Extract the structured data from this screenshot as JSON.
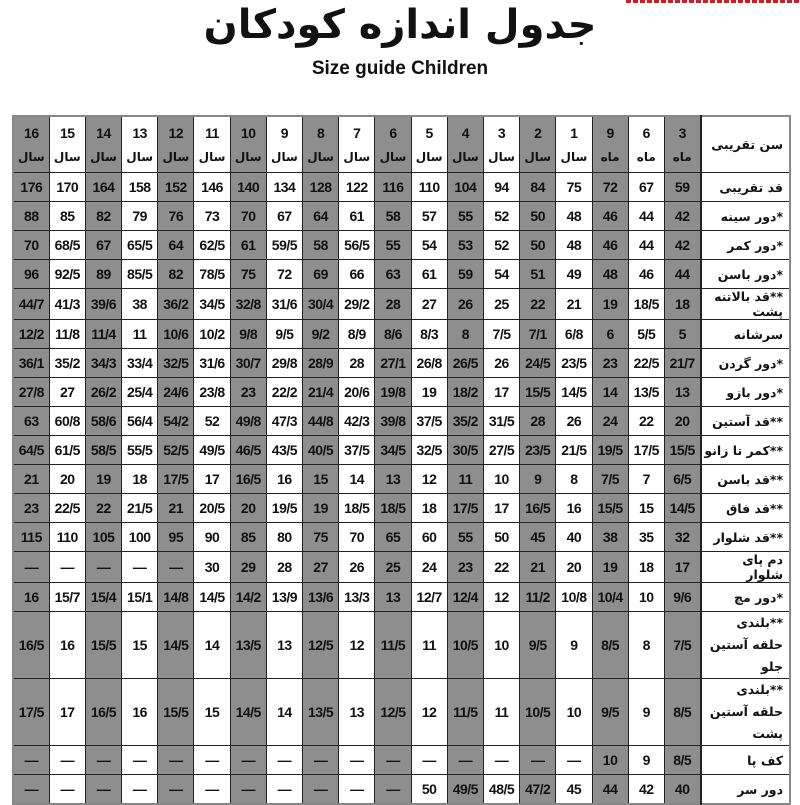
{
  "watermark_color": "#e8101a",
  "title": "جدول اندازه کودکان",
  "subtitle": "Size guide Children",
  "colors": {
    "shaded": "#8e8e8e",
    "plain": "#ffffff",
    "border": "#222222"
  },
  "table": {
    "header_label": "سن تقریبی",
    "columns": [
      {
        "num": "16",
        "unit": "سال"
      },
      {
        "num": "15",
        "unit": "سال"
      },
      {
        "num": "14",
        "unit": "سال"
      },
      {
        "num": "13",
        "unit": "سال"
      },
      {
        "num": "12",
        "unit": "سال"
      },
      {
        "num": "11",
        "unit": "سال"
      },
      {
        "num": "10",
        "unit": "سال"
      },
      {
        "num": "9",
        "unit": "سال"
      },
      {
        "num": "8",
        "unit": "سال"
      },
      {
        "num": "7",
        "unit": "سال"
      },
      {
        "num": "6",
        "unit": "سال"
      },
      {
        "num": "5",
        "unit": "سال"
      },
      {
        "num": "4",
        "unit": "سال"
      },
      {
        "num": "3",
        "unit": "سال"
      },
      {
        "num": "2",
        "unit": "سال"
      },
      {
        "num": "1",
        "unit": "سال"
      },
      {
        "num": "9",
        "unit": "ماه"
      },
      {
        "num": "6",
        "unit": "ماه"
      },
      {
        "num": "3",
        "unit": "ماه"
      }
    ],
    "rows": [
      {
        "label": "قد تقریبی",
        "values": [
          "176",
          "170",
          "164",
          "158",
          "152",
          "146",
          "140",
          "134",
          "128",
          "122",
          "116",
          "110",
          "104",
          "94",
          "84",
          "75",
          "72",
          "67",
          "59"
        ]
      },
      {
        "label": "*دور سینه",
        "values": [
          "88",
          "85",
          "82",
          "79",
          "76",
          "73",
          "70",
          "67",
          "64",
          "61",
          "58",
          "57",
          "55",
          "52",
          "50",
          "48",
          "46",
          "44",
          "42"
        ]
      },
      {
        "label": "*دور کمر",
        "values": [
          "70",
          "68/5",
          "67",
          "65/5",
          "64",
          "62/5",
          "61",
          "59/5",
          "58",
          "56/5",
          "55",
          "54",
          "53",
          "52",
          "50",
          "48",
          "46",
          "44",
          "42"
        ]
      },
      {
        "label": "*دور باسن",
        "values": [
          "96",
          "92/5",
          "89",
          "85/5",
          "82",
          "78/5",
          "75",
          "72",
          "69",
          "66",
          "63",
          "61",
          "59",
          "54",
          "51",
          "49",
          "48",
          "46",
          "44"
        ]
      },
      {
        "label": "**قد بالاتنه پشت",
        "values": [
          "44/7",
          "41/3",
          "39/6",
          "38",
          "36/2",
          "34/5",
          "32/8",
          "31/6",
          "30/4",
          "29/2",
          "28",
          "27",
          "26",
          "25",
          "22",
          "21",
          "19",
          "18/5",
          "18"
        ]
      },
      {
        "label": "سرشانه",
        "values": [
          "12/2",
          "11/8",
          "11/4",
          "11",
          "10/6",
          "10/2",
          "9/8",
          "9/5",
          "9/2",
          "8/9",
          "8/6",
          "8/3",
          "8",
          "7/5",
          "7/1",
          "6/8",
          "6",
          "5/5",
          "5"
        ]
      },
      {
        "label": "*دور گردن",
        "values": [
          "36/1",
          "35/2",
          "34/3",
          "33/4",
          "32/5",
          "31/6",
          "30/7",
          "29/8",
          "28/9",
          "28",
          "27/1",
          "26/8",
          "26/5",
          "26",
          "24/5",
          "23/5",
          "23",
          "22/5",
          "21/7"
        ]
      },
      {
        "label": "*دور بازو",
        "values": [
          "27/8",
          "27",
          "26/2",
          "25/4",
          "24/6",
          "23/8",
          "23",
          "22/2",
          "21/4",
          "20/6",
          "19/8",
          "19",
          "18/2",
          "17",
          "15/5",
          "14/5",
          "14",
          "13/5",
          "13"
        ]
      },
      {
        "label": "**قد آستین",
        "values": [
          "63",
          "60/8",
          "58/6",
          "56/4",
          "54/2",
          "52",
          "49/8",
          "47/3",
          "44/8",
          "42/3",
          "39/8",
          "37/5",
          "35/2",
          "31/5",
          "28",
          "26",
          "24",
          "22",
          "20"
        ]
      },
      {
        "label": "**کمر تا زانو",
        "values": [
          "64/5",
          "61/5",
          "58/5",
          "55/5",
          "52/5",
          "49/5",
          "46/5",
          "43/5",
          "40/5",
          "37/5",
          "34/5",
          "32/5",
          "30/5",
          "27/5",
          "23/5",
          "21/5",
          "19/5",
          "17/5",
          "15/5"
        ]
      },
      {
        "label": "**قد باسن",
        "values": [
          "21",
          "20",
          "19",
          "18",
          "17/5",
          "17",
          "16/5",
          "16",
          "15",
          "14",
          "13",
          "12",
          "11",
          "10",
          "9",
          "8",
          "7/5",
          "7",
          "6/5"
        ]
      },
      {
        "label": "**قد فاق",
        "values": [
          "23",
          "22/5",
          "22",
          "21/5",
          "21",
          "20/5",
          "20",
          "19/5",
          "19",
          "18/5",
          "18/5",
          "18",
          "17/5",
          "17",
          "16/5",
          "16",
          "15/5",
          "15",
          "14/5"
        ]
      },
      {
        "label": "**قد شلوار",
        "values": [
          "115",
          "110",
          "105",
          "100",
          "95",
          "90",
          "85",
          "80",
          "75",
          "70",
          "65",
          "60",
          "55",
          "50",
          "45",
          "40",
          "38",
          "35",
          "32"
        ]
      },
      {
        "label": "دم پای شلوار",
        "values": [
          "—",
          "—",
          "—",
          "—",
          "—",
          "30",
          "29",
          "28",
          "27",
          "26",
          "25",
          "24",
          "23",
          "22",
          "21",
          "20",
          "19",
          "18",
          "17"
        ]
      },
      {
        "label": "*دور مچ",
        "values": [
          "16",
          "15/7",
          "15/4",
          "15/1",
          "14/8",
          "14/5",
          "14/2",
          "13/9",
          "13/6",
          "13/3",
          "13",
          "12/7",
          "12/4",
          "12",
          "11/2",
          "10/8",
          "10/4",
          "10",
          "9/6"
        ]
      },
      {
        "label": "**بلندی حلقه آستین جلو",
        "tall": true,
        "values": [
          "16/5",
          "16",
          "15/5",
          "15",
          "14/5",
          "14",
          "13/5",
          "13",
          "12/5",
          "12",
          "11/5",
          "11",
          "10/5",
          "10",
          "9/5",
          "9",
          "8/5",
          "8",
          "7/5"
        ]
      },
      {
        "label": "**بلندی حلقه آستین پشت",
        "tall": true,
        "values": [
          "17/5",
          "17",
          "16/5",
          "16",
          "15/5",
          "15",
          "14/5",
          "14",
          "13/5",
          "13",
          "12/5",
          "12",
          "11/5",
          "11",
          "10/5",
          "10",
          "9/5",
          "9",
          "8/5"
        ]
      },
      {
        "label": "کف پا",
        "values": [
          "—",
          "—",
          "—",
          "—",
          "—",
          "—",
          "—",
          "—",
          "—",
          "—",
          "—",
          "—",
          "—",
          "—",
          "—",
          "—",
          "10",
          "9",
          "8/5"
        ]
      },
      {
        "label": "دور سر",
        "values": [
          "—",
          "—",
          "—",
          "—",
          "—",
          "—",
          "—",
          "—",
          "—",
          "—",
          "—",
          "50",
          "49/5",
          "48/5",
          "47/2",
          "45",
          "44",
          "42",
          "40"
        ]
      }
    ]
  }
}
